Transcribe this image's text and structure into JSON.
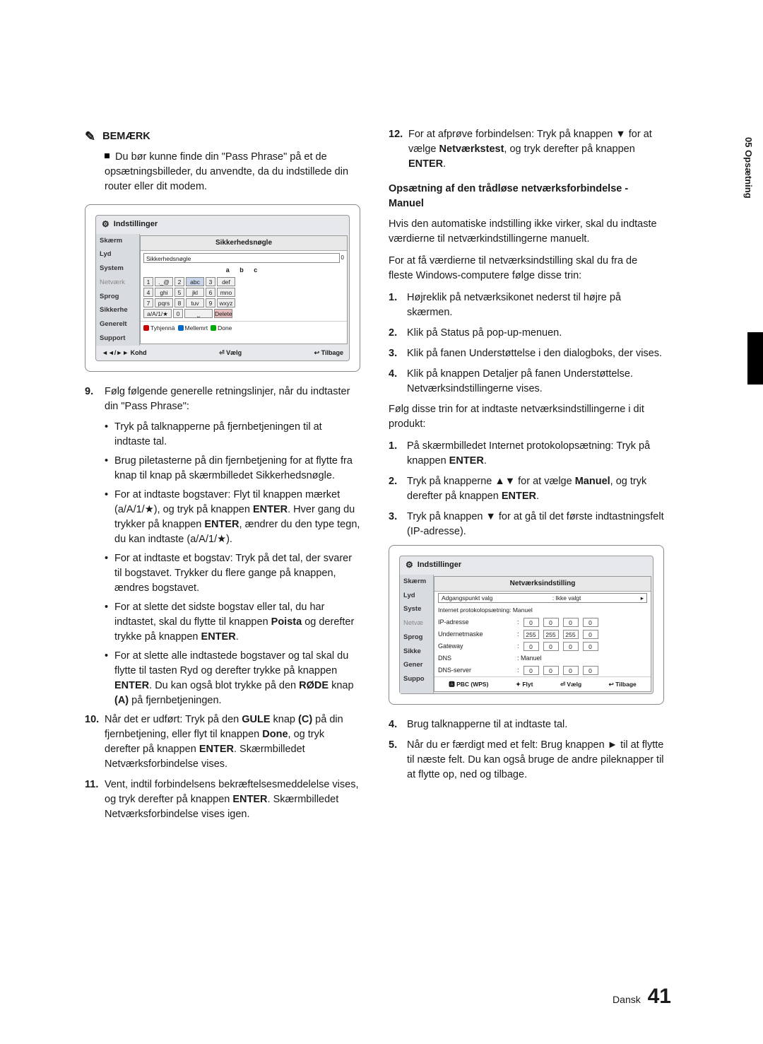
{
  "note": {
    "heading": "BEMÆRK",
    "body": "Du bør kunne finde din \"Pass Phrase\" på et de opsætningsbilleder, du anvendte, da du indstillede din router eller dit modem."
  },
  "screenshot1": {
    "title": "Indstillinger",
    "sidebar": [
      "Skærm",
      "Lyd",
      "System",
      "Netværk",
      "Sprog",
      "Sikkerhe",
      "Generelt",
      "Support"
    ],
    "mainTitle": "Sikkerhedsnøgle",
    "inputText": "Sikkerhedsnøgle",
    "abc": "a  b  c",
    "keys": [
      [
        "1",
        "._@",
        "2",
        "abc",
        "3",
        "def"
      ],
      [
        "4",
        "ghi",
        "5",
        "jkl",
        "6",
        "mno"
      ],
      [
        "7",
        "pqrs",
        "8",
        "tuv",
        "9",
        "wxyz"
      ]
    ],
    "bottomRow": [
      "a/A/1/★",
      "0",
      "⎵",
      "Delete"
    ],
    "actions": [
      "Tyhjennä",
      "Mellemrt",
      "Done"
    ],
    "footer": [
      "◄◄/►► Kohd",
      "⏎ Vælg",
      "↩ Tilbage"
    ]
  },
  "leftList": {
    "item9": "Følg følgende generelle retningslinjer, når du indtaster din \"Pass Phrase\":",
    "bullets": [
      "Tryk på talknapperne på fjernbetjeningen til at indtaste tal.",
      "Brug piletasterne på din fjernbetjening for at flytte fra knap til knap på skærmbilledet Sikkerhedsnøgle.",
      "For at indtaste bogstaver: Flyt til knappen mærket (a/A/1/★), og tryk på knappen <b>ENTER</b>. Hver gang du trykker på knappen <b>ENTER</b>, ændrer du den type tegn, du kan indtaste (a/A/1/★).",
      "For at indtaste et bogstav: Tryk på det tal, der svarer til bogstavet. Trykker du flere gange på knappen, ændres bogstavet.",
      "For at slette det sidste bogstav eller tal, du har indtastet, skal du flytte til knappen <b>Poista</b> og derefter trykke på knappen <b>ENTER</b>.",
      "For at slette alle indtastede bogstaver og tal skal du flytte til tasten Ryd og derefter trykke på knappen <b>ENTER</b>. Du kan også blot trykke på den <b>RØDE</b> knap <b>(A)</b> på fjernbetjeningen."
    ],
    "item10": "Når det er udført: Tryk på den <b>GULE</b> knap <b>(C)</b> på din fjernbetjening, eller flyt til knappen <b>Done</b>, og tryk derefter på knappen <b>ENTER</b>. Skærmbilledet Netværksforbindelse vises.",
    "item11": "Vent, indtil forbindelsens bekræftelsesmeddelelse vises, og tryk derefter på knappen <b>ENTER</b>. Skærmbilledet Netværksforbindelse vises igen."
  },
  "right": {
    "item12": "For at afprøve forbindelsen: Tryk på knappen ▼ for at vælge <b>Netværkstest</b>, og tryk derefter på knappen <b>ENTER</b>.",
    "subheading1": "Opsætning af den trådløse netværksforbindelse - Manuel",
    "p1": "Hvis den automatiske indstilling ikke virker, skal du indtaste værdierne til netværkindstillingerne manuelt.",
    "p2": "For at få værdierne til netværksindstilling skal du fra de fleste Windows-computere følge disse trin:",
    "listA": [
      "Højreklik på netværksikonet nederst til højre på skærmen.",
      "Klik på Status på pop-up-menuen.",
      "Klik på fanen Understøttelse i den dialogboks, der vises.",
      "Klik på knappen Detaljer på fanen Understøttelse. Netværksindstillingerne vises."
    ],
    "p3": "Følg disse trin for at indtaste netværksindstillingerne i dit produkt:",
    "listB": [
      "På skærmbilledet Internet protokolopsætning: Tryk på knappen <b>ENTER</b>.",
      "Tryk på knapperne ▲▼ for at vælge <b>Manuel</b>, og tryk derefter på knappen <b>ENTER</b>.",
      "Tryk på knappen ▼ for at gå til det første indtastningsfelt (IP-adresse)."
    ],
    "listC": [
      "Brug talknapperne til at indtaste tal.",
      "Når du er færdigt med et felt: Brug knappen ► til at flytte til næste felt. Du kan også bruge de andre pileknapper til at flytte op, ned og tilbage."
    ]
  },
  "screenshot2": {
    "title": "Indstillinger",
    "sidebar": [
      "Skærm",
      "Lyd",
      "Syste",
      "Netvæ",
      "Sprog",
      "Sikke",
      "Gener",
      "Suppo"
    ],
    "mainTitle": "Netværksindstilling",
    "apv_label": "Adgangspunkt valg",
    "apv_value": ": Ikke valgt",
    "proto_label": "Internet protokolopsætning: Manuel",
    "ip_label": "IP-adresse",
    "ip": [
      "0",
      "0",
      "0",
      "0"
    ],
    "mask_label": "Undernetmaske",
    "mask": [
      "255",
      "255",
      "255",
      "0"
    ],
    "gw_label": "Gateway",
    "gw": [
      "0",
      "0",
      "0",
      "0"
    ],
    "dns_label": "DNS",
    "dns_value": ": Manuel",
    "dnss_label": "DNS-server",
    "dnss": [
      "0",
      "0",
      "0",
      "0"
    ],
    "footer": [
      "🅰 PBC (WPS)",
      "✦ Flyt",
      "⏎ Vælg",
      "↩ Tilbage"
    ]
  },
  "sideTab": "05  Opsætning",
  "footer": {
    "lang": "Dansk",
    "page": "41"
  }
}
